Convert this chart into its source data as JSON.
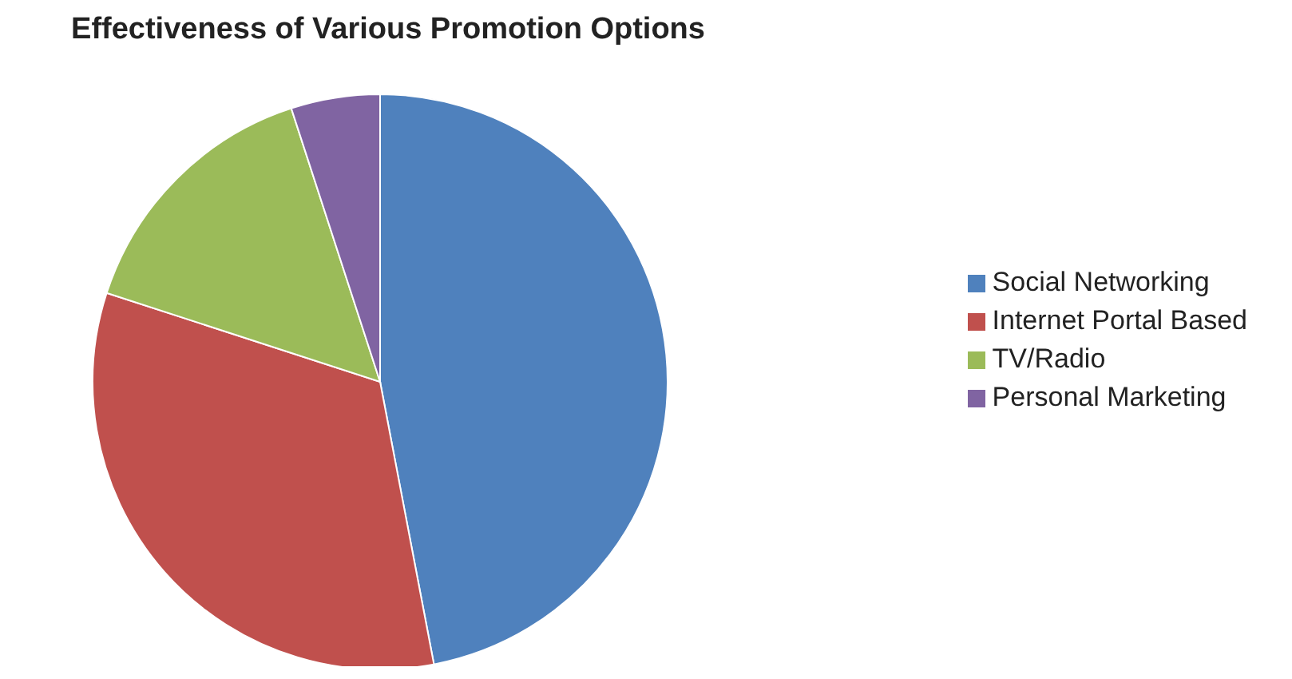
{
  "chart_data": {
    "type": "pie",
    "title": "Effectiveness of Various Promotion Options",
    "categories": [
      "Social Networking",
      "Internet Portal Based",
      "TV/Radio",
      "Personal Marketing"
    ],
    "values": [
      47,
      33,
      15,
      5
    ],
    "colors": [
      "#4f81bd",
      "#c0504d",
      "#9bbb59",
      "#8064a2"
    ],
    "legend": "right"
  }
}
